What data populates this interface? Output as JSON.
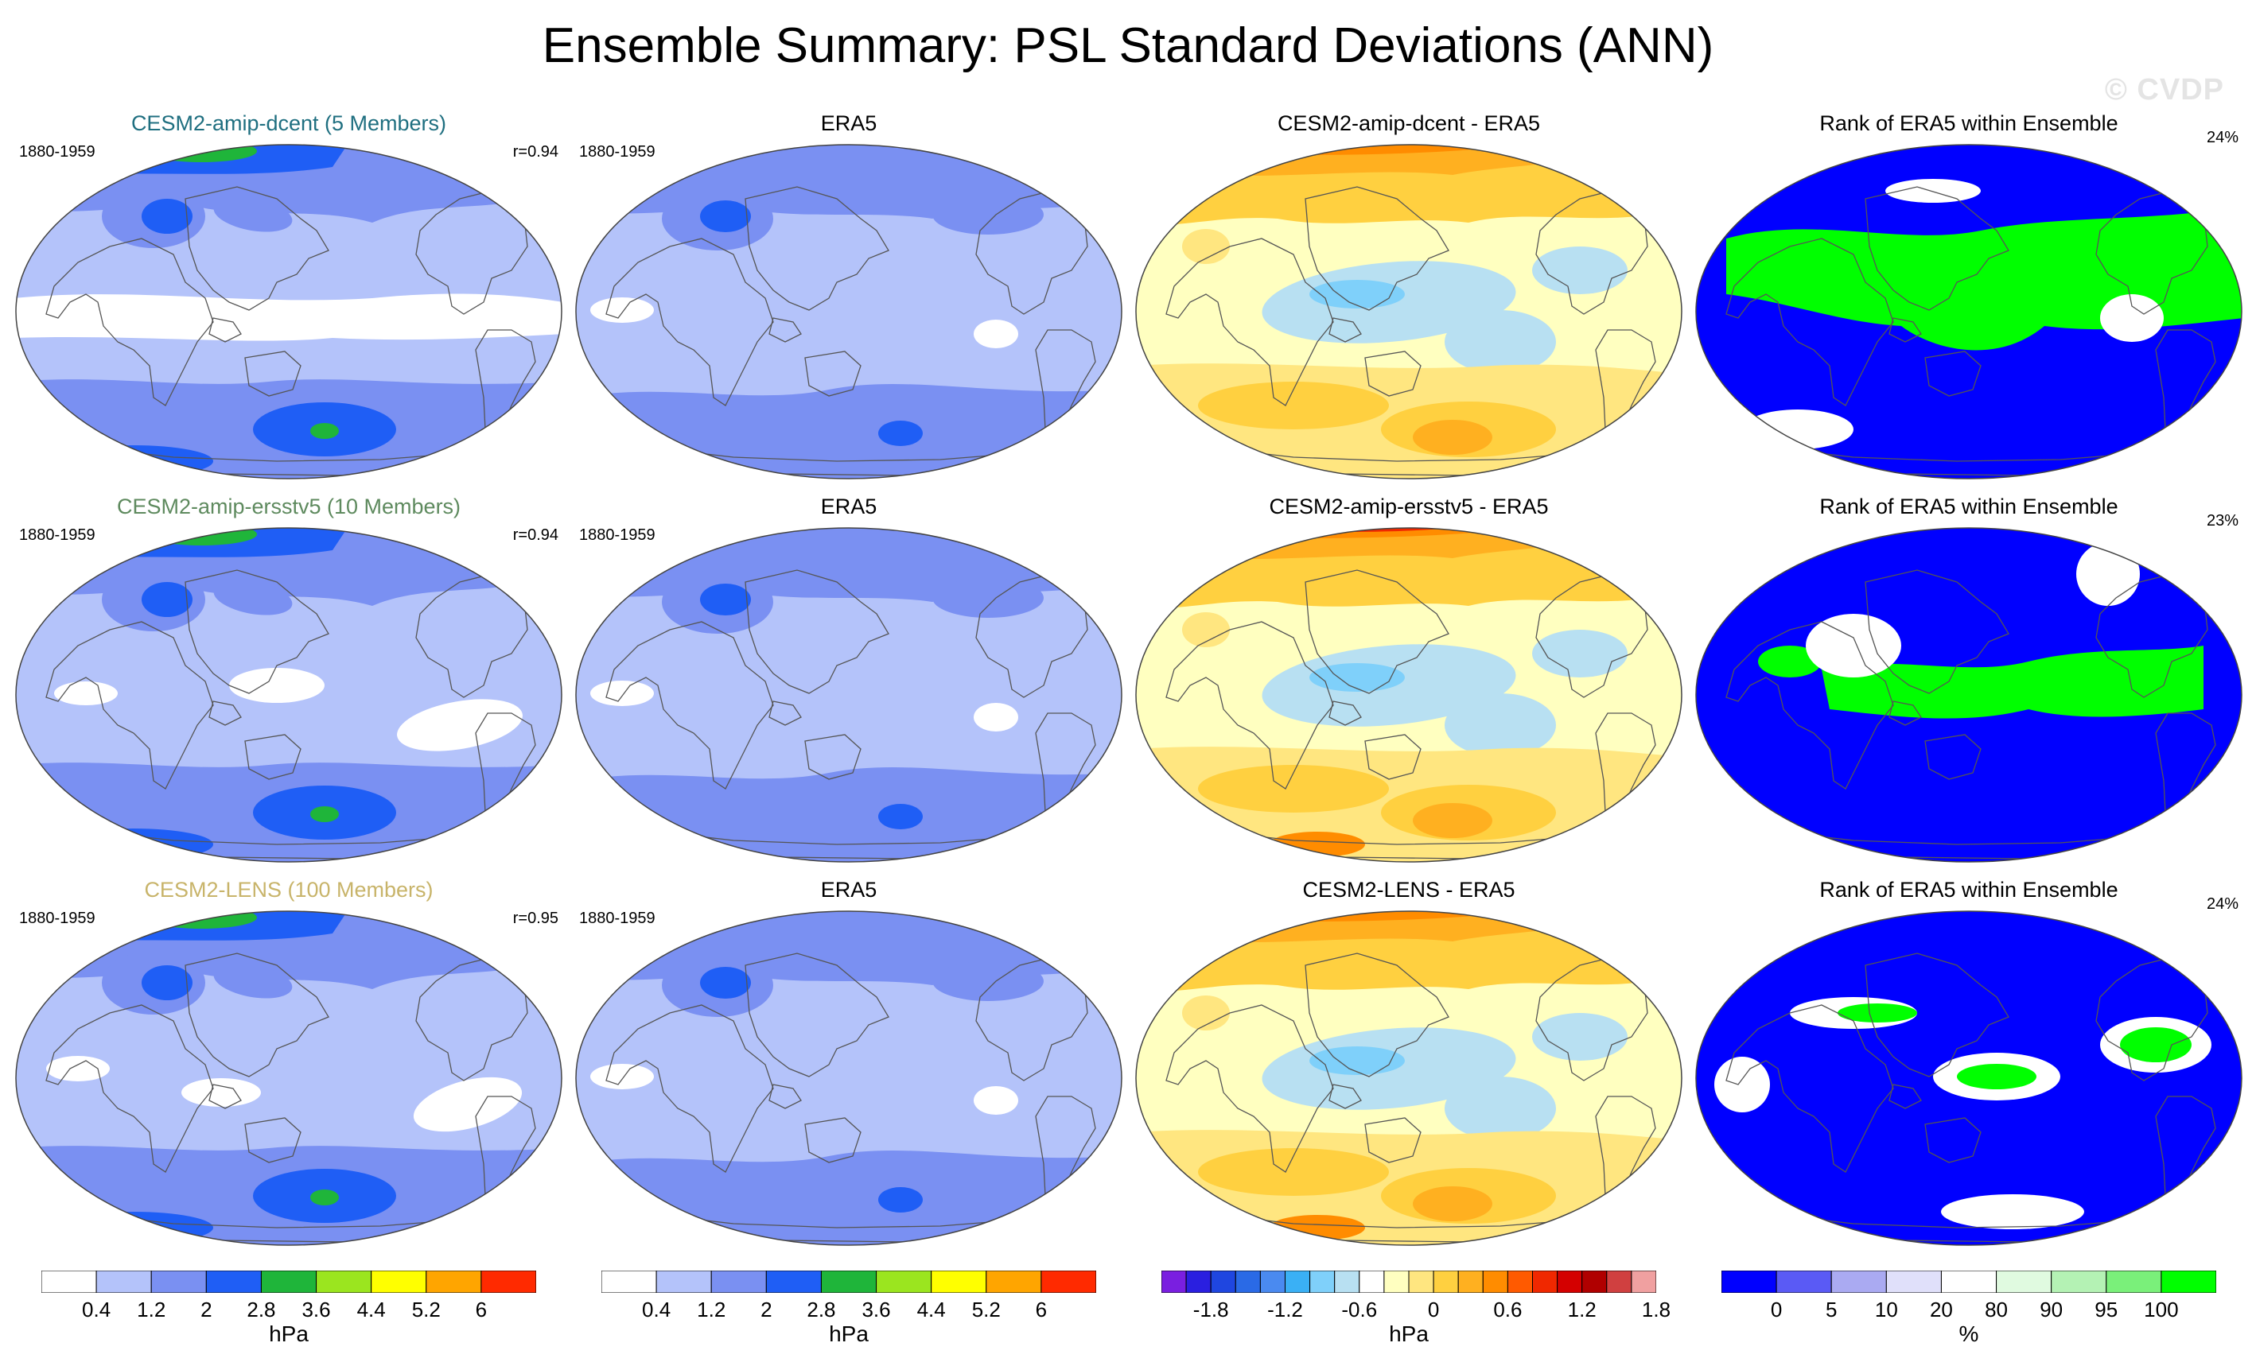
{
  "title": "Ensemble Summary: PSL Standard Deviations (ANN)",
  "watermark": "© CVDP",
  "rows": [
    {
      "model": {
        "title": "CESM2-amip-dcent (5 Members)",
        "title_color": "#1f6f80",
        "years": "1880-1959",
        "corr": "r=0.94"
      },
      "obs": {
        "title": "ERA5",
        "years": "1880-1959"
      },
      "diff": {
        "title": "CESM2-amip-dcent - ERA5"
      },
      "rank": {
        "title": "Rank of ERA5 within Ensemble",
        "pct": "24%"
      }
    },
    {
      "model": {
        "title": "CESM2-amip-ersstv5 (10 Members)",
        "title_color": "#5e8a5e",
        "years": "1880-1959",
        "corr": "r=0.94"
      },
      "obs": {
        "title": "ERA5",
        "years": "1880-1959"
      },
      "diff": {
        "title": "CESM2-amip-ersstv5 - ERA5"
      },
      "rank": {
        "title": "Rank of ERA5 within Ensemble",
        "pct": "23%"
      }
    },
    {
      "model": {
        "title": "CESM2-LENS (100 Members)",
        "title_color": "#c8b46a",
        "years": "1880-1959",
        "corr": "r=0.95"
      },
      "obs": {
        "title": "ERA5",
        "years": "1880-1959"
      },
      "diff": {
        "title": "CESM2-LENS - ERA5"
      },
      "rank": {
        "title": "Rank of ERA5 within Ensemble",
        "pct": "24%"
      }
    }
  ],
  "colorbars": {
    "std": {
      "colors": [
        "#ffffff",
        "#b4c3fa",
        "#7a90f2",
        "#1f5ef5",
        "#1fb53a",
        "#9be51f",
        "#ffff00",
        "#ffa500",
        "#ff2a00"
      ],
      "ticks": [
        "0.4",
        "1.2",
        "2",
        "2.8",
        "3.6",
        "4.4",
        "5.2",
        "6"
      ],
      "unit": "hPa"
    },
    "diff": {
      "colors": [
        "#7a1fe0",
        "#2a1fe0",
        "#1f46e0",
        "#2a6ae6",
        "#4a8af0",
        "#3ab0f5",
        "#7fd0fa",
        "#b8e0f2",
        "#ffffff",
        "#ffffc0",
        "#ffe680",
        "#ffd040",
        "#ffb020",
        "#ff8c00",
        "#ff5a00",
        "#f02800",
        "#d40000",
        "#b00000",
        "#d04040",
        "#f0a0a0"
      ],
      "ticks": [
        "-1.8",
        "-1.2",
        "-0.6",
        "0",
        "0.6",
        "1.2",
        "1.8"
      ],
      "unit": "hPa"
    },
    "rank": {
      "colors": [
        "#0000ff",
        "#5a5af5",
        "#aaaaf2",
        "#e0e0fa",
        "#ffffff",
        "#e0fae0",
        "#b4f2b4",
        "#7af07a",
        "#00ff00"
      ],
      "ticks": [
        "0",
        "5",
        "10",
        "20",
        "80",
        "90",
        "95",
        "100"
      ],
      "unit": "%"
    }
  }
}
